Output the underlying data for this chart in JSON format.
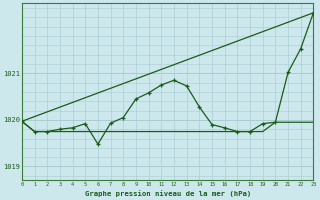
{
  "title": "Graphe pression niveau de la mer (hPa)",
  "bg_color": "#cce8ec",
  "grid_color": "#aacdd4",
  "line_color": "#1a5c1a",
  "xlim": [
    0,
    23
  ],
  "ylim": [
    1018.7,
    1022.5
  ],
  "yticks": [
    1019,
    1020,
    1021
  ],
  "xticks": [
    0,
    1,
    2,
    3,
    4,
    5,
    6,
    7,
    8,
    9,
    10,
    11,
    12,
    13,
    14,
    15,
    16,
    17,
    18,
    19,
    20,
    21,
    22,
    23
  ],
  "line1_x": [
    0,
    23
  ],
  "line1_y": [
    1019.97,
    1022.3
  ],
  "line2_x": [
    0,
    1,
    2,
    3,
    4,
    5,
    6,
    7,
    8,
    9,
    10,
    11,
    12,
    13,
    14,
    15,
    16,
    17,
    18,
    19,
    20,
    21,
    22,
    23
  ],
  "line2_y": [
    1019.97,
    1019.75,
    1019.75,
    1019.8,
    1019.83,
    1019.92,
    1019.48,
    1019.93,
    1020.05,
    1020.45,
    1020.58,
    1020.75,
    1020.85,
    1020.73,
    1020.28,
    1019.9,
    1019.83,
    1019.75,
    1019.75,
    1019.92,
    1019.95,
    1021.02,
    1021.53,
    1022.3
  ],
  "line3_x": [
    0,
    1,
    2,
    3,
    4,
    5,
    6,
    7,
    8,
    9,
    10,
    11,
    12,
    13,
    14,
    15,
    16,
    17,
    18,
    19,
    20,
    21,
    22,
    23
  ],
  "line3_y": [
    1019.97,
    1019.75,
    1019.75,
    1019.75,
    1019.75,
    1019.75,
    1019.75,
    1019.75,
    1019.75,
    1019.75,
    1019.75,
    1019.75,
    1019.75,
    1019.75,
    1019.75,
    1019.75,
    1019.75,
    1019.75,
    1019.75,
    1019.75,
    1019.95,
    1019.95,
    1019.95,
    1019.95
  ]
}
